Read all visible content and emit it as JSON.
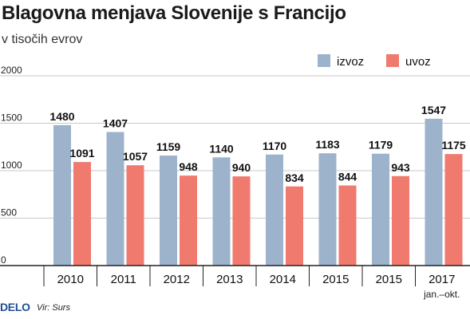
{
  "chart_data": {
    "type": "bar",
    "title": "Blagovna menjava Slovenije s Francijo",
    "subtitle": "v tisočih evrov",
    "categories": [
      "2010",
      "2011",
      "2012",
      "2013",
      "2014",
      "2015",
      "2015",
      "2017"
    ],
    "category_sublabels": [
      "",
      "",
      "",
      "",
      "",
      "",
      "",
      "jan.–okt."
    ],
    "series": [
      {
        "name": "izvoz",
        "color": "#9db3cc",
        "values": [
          1480,
          1407,
          1159,
          1140,
          1170,
          1183,
          1179,
          1547
        ]
      },
      {
        "name": "uvoz",
        "color": "#f07a6e",
        "values": [
          1091,
          1057,
          948,
          940,
          834,
          844,
          943,
          1175
        ]
      }
    ],
    "ylim": [
      0,
      2000
    ],
    "yticks": [
      "0",
      "500",
      "1000",
      "1500",
      "2000"
    ],
    "grid": true,
    "legend_position": "top-right"
  },
  "footer": {
    "logo": "DELO",
    "source": "Vir: Surs"
  }
}
